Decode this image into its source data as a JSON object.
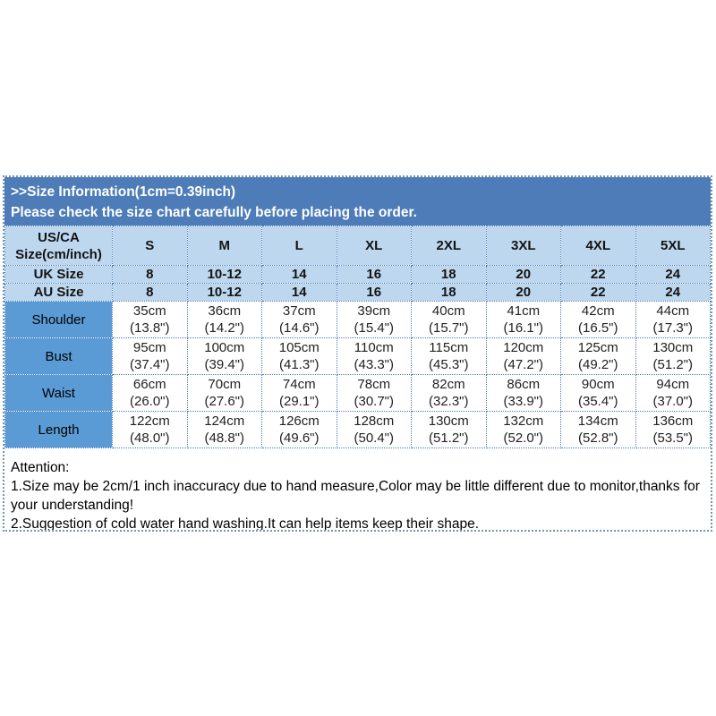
{
  "banner": {
    "line1": ">>Size Information(1cm=0.39inch)",
    "line2": "Please check the size chart carefully before placing the order."
  },
  "colors": {
    "banner_bg": "#4d7cb8",
    "header_row_bg": "#bdd7ee",
    "label_column_bg": "#5b9bd5",
    "cell_border": "#4a7ebb",
    "outer_border": "#7296ab"
  },
  "table": {
    "corner": {
      "line1": "US/CA",
      "line2": "Size(cm/inch)"
    },
    "size_headers": [
      "S",
      "M",
      "L",
      "XL",
      "2XL",
      "3XL",
      "4XL",
      "5XL"
    ],
    "uk": {
      "label": "UK Size",
      "values": [
        "8",
        "10-12",
        "14",
        "16",
        "18",
        "20",
        "22",
        "24"
      ]
    },
    "au": {
      "label": "AU Size",
      "values": [
        "8",
        "10-12",
        "14",
        "16",
        "18",
        "20",
        "22",
        "24"
      ]
    },
    "measurements": [
      {
        "label": "Shoulder",
        "cells": [
          {
            "cm": "35cm",
            "inch": "(13.8\")"
          },
          {
            "cm": "36cm",
            "inch": "(14.2\")"
          },
          {
            "cm": "37cm",
            "inch": "(14.6\")"
          },
          {
            "cm": "39cm",
            "inch": "(15.4\")"
          },
          {
            "cm": "40cm",
            "inch": "(15.7\")"
          },
          {
            "cm": "41cm",
            "inch": "(16.1\")"
          },
          {
            "cm": "42cm",
            "inch": "(16.5\")"
          },
          {
            "cm": "44cm",
            "inch": "(17.3\")"
          }
        ]
      },
      {
        "label": "Bust",
        "cells": [
          {
            "cm": "95cm",
            "inch": "(37.4\")"
          },
          {
            "cm": "100cm",
            "inch": "(39.4\")"
          },
          {
            "cm": "105cm",
            "inch": "(41.3\")"
          },
          {
            "cm": "110cm",
            "inch": "(43.3\")"
          },
          {
            "cm": "115cm",
            "inch": "(45.3\")"
          },
          {
            "cm": "120cm",
            "inch": "(47.2\")"
          },
          {
            "cm": "125cm",
            "inch": "(49.2\")"
          },
          {
            "cm": "130cm",
            "inch": "(51.2\")"
          }
        ]
      },
      {
        "label": "Waist",
        "cells": [
          {
            "cm": "66cm",
            "inch": "(26.0\")"
          },
          {
            "cm": "70cm",
            "inch": "(27.6\")"
          },
          {
            "cm": "74cm",
            "inch": "(29.1\")"
          },
          {
            "cm": "78cm",
            "inch": "(30.7\")"
          },
          {
            "cm": "82cm",
            "inch": "(32.3\")"
          },
          {
            "cm": "86cm",
            "inch": "(33.9\")"
          },
          {
            "cm": "90cm",
            "inch": "(35.4\")"
          },
          {
            "cm": "94cm",
            "inch": "(37.0\")"
          }
        ]
      },
      {
        "label": "Length",
        "cells": [
          {
            "cm": "122cm",
            "inch": "(48.0\")"
          },
          {
            "cm": "124cm",
            "inch": "(48.8\")"
          },
          {
            "cm": "126cm",
            "inch": "(49.6\")"
          },
          {
            "cm": "128cm",
            "inch": "(50.4\")"
          },
          {
            "cm": "130cm",
            "inch": "(51.2\")"
          },
          {
            "cm": "132cm",
            "inch": "(52.0\")"
          },
          {
            "cm": "134cm",
            "inch": "(52.8\")"
          },
          {
            "cm": "136cm",
            "inch": "(53.5\")"
          }
        ]
      }
    ]
  },
  "attention": {
    "title": "Attention:",
    "note1": "1.Size may be 2cm/1 inch inaccuracy due to hand measure,Color may be little different due to monitor,thanks for your understanding!",
    "note2": "2.Suggestion of cold water hand washing.It can help items keep their shape."
  }
}
